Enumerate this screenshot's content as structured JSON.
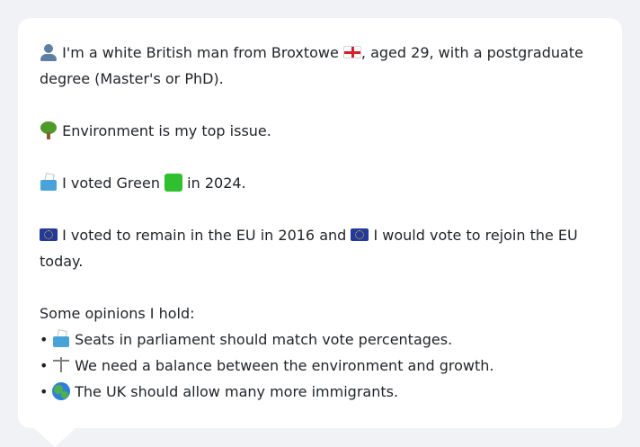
{
  "profile": {
    "intro_line1": "I'm a white British man from Broxtowe",
    "intro_line1_suffix": ", aged 29, with a postgraduate",
    "intro_line2": "degree (Master's or PhD).",
    "top_issue": "Environment is my top issue.",
    "vote_prefix": "I voted Green",
    "vote_suffix": "in 2024.",
    "eu_part1": "I voted to remain in the EU in 2016 and",
    "eu_part2": "I would vote to rejoin the EU",
    "eu_line2": "today.",
    "opinions_heading": "Some opinions I hold:",
    "opinions": [
      {
        "icon": "ballot-box-icon",
        "text": "Seats in parliament should match vote percentages."
      },
      {
        "icon": "scales-icon",
        "text": "We need a balance between the environment and growth."
      },
      {
        "icon": "globe-icon",
        "text": "The UK should allow many more immigrants."
      }
    ]
  },
  "colors": {
    "background": "#f1f2f5",
    "bubble": "#ffffff",
    "text": "#1f2328",
    "green_party": "#2fbf2f"
  },
  "icons": {
    "person": "person-silhouette-icon",
    "england_flag": "england-flag-icon",
    "tree": "tree-icon",
    "ballot": "ballot-box-icon",
    "green_square": "green-square-icon",
    "eu_flag": "eu-flag-icon"
  }
}
